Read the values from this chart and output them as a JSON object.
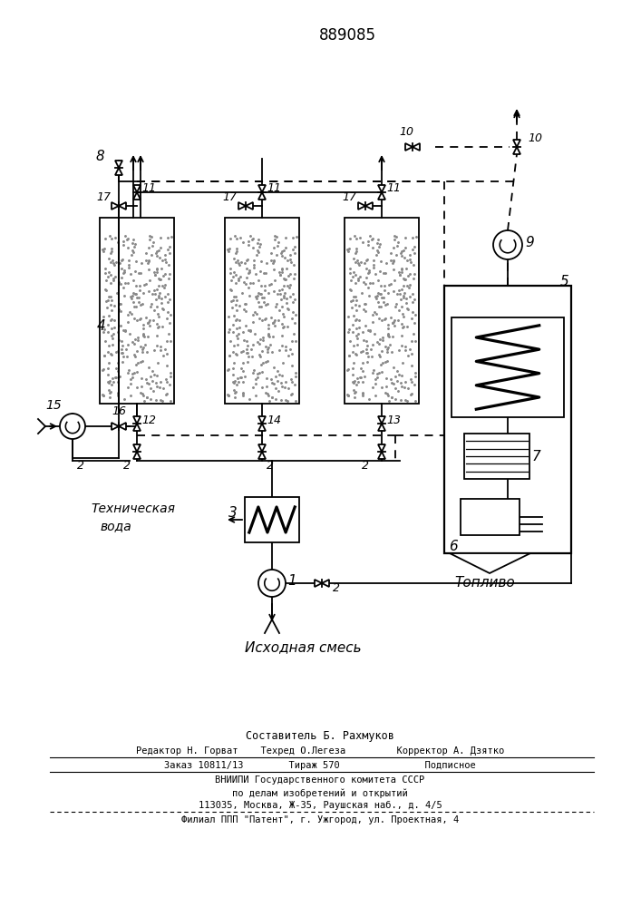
{
  "title": "889085",
  "bg": "#ffffff",
  "lc": "#000000",
  "lw": 1.3,
  "fig_w": 7.07,
  "fig_h": 10.0,
  "dpi": 100,
  "footer": [
    "Составитель Б. Рахмуков",
    "Редактор Н. Горват    Техред О.Легеза         Корректор А. Дзятко",
    "Заказ 10811/13        Тираж 570               Подписное",
    "ВНИИПИ Государственного комитета СССР",
    "по делам изобретений и открытий",
    "113035, Москва, Ж-35, Раушская наб., д. 4/5",
    "Филиал ППП \"Патент\", г. Ужгород, ул. Проектная, 4"
  ]
}
